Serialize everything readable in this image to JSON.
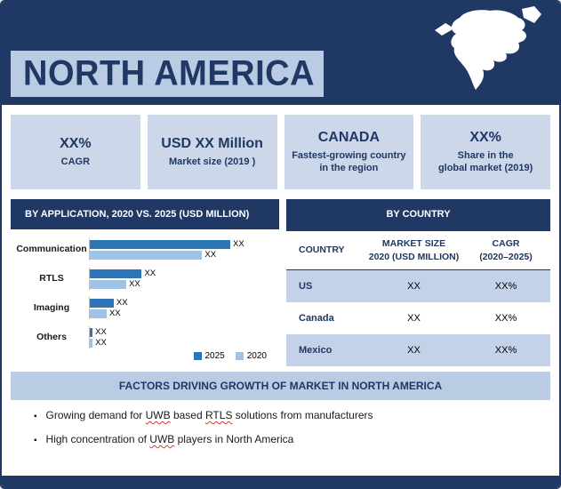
{
  "header": {
    "title": "NORTH AMERICA"
  },
  "stats": [
    {
      "value": "XX%",
      "label": "CAGR"
    },
    {
      "value": "USD XX Million",
      "label": "Market size (2019 )"
    },
    {
      "value": "CANADA",
      "label": "Fastest-growing country\nin the region"
    },
    {
      "value": "XX%",
      "label": "Share in the\nglobal market (2019)"
    }
  ],
  "chart_data": {
    "type": "bar",
    "orientation": "horizontal",
    "title": "BY APPLICATION,  2020 VS. 2025 (USD MILLION)",
    "categories": [
      "Communication",
      "RTLS",
      "Imaging",
      "Others"
    ],
    "series": [
      {
        "name": "2025",
        "color": "#2e75b6",
        "values": [
          100,
          37,
          17,
          2
        ],
        "value_labels": [
          "XX",
          "XX",
          "XX",
          "XX"
        ]
      },
      {
        "name": "2020",
        "color": "#9dc3e6",
        "values": [
          80,
          26,
          12,
          2
        ],
        "value_labels": [
          "XX",
          "XX",
          "XX",
          "XX"
        ]
      }
    ],
    "legend_position": "bottom-right",
    "grid": false
  },
  "country_table": {
    "title": "BY COUNTRY",
    "columns": [
      "COUNTRY",
      "MARKET SIZE\n2020 (USD MILLION)",
      "CAGR\n(2020–2025)"
    ],
    "rows": [
      [
        "US",
        "XX",
        "XX%"
      ],
      [
        "Canada",
        "XX",
        "XX%"
      ],
      [
        "Mexico",
        "XX",
        "XX%"
      ]
    ]
  },
  "factors": {
    "title": "FACTORS DRIVING GROWTH OF MARKET IN NORTH AMERICA",
    "bullets": [
      "Growing demand for UWB based RTLS solutions from manufacturers",
      "High concentration of UWB players in North America"
    ],
    "flagged_words": [
      "UWB",
      "RTLS"
    ]
  },
  "colors": {
    "navy": "#1f3864",
    "panel_blue": "#b9cce4",
    "card_blue": "#ccd8ea",
    "row_blue": "#c3d2e8",
    "bar_2025": "#2e75b6",
    "bar_2020": "#9dc3e6"
  }
}
